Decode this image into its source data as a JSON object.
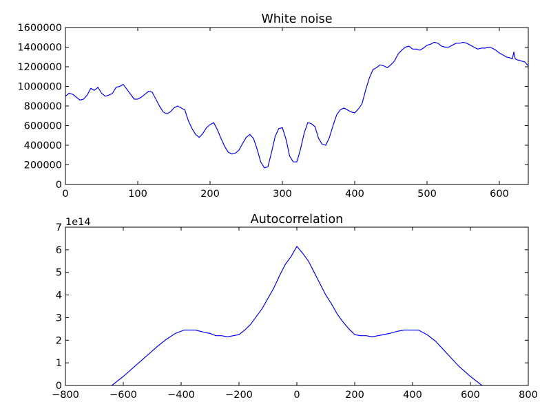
{
  "figure": {
    "background": "#ffffff"
  },
  "chart_data": [
    {
      "type": "line",
      "title": "White noise",
      "xlabel": "",
      "ylabel": "",
      "xlim": [
        0,
        640
      ],
      "ylim": [
        0,
        1600000
      ],
      "grid": false,
      "xticks": [
        0,
        100,
        200,
        300,
        400,
        500,
        600
      ],
      "yticks": [
        0,
        200000,
        400000,
        600000,
        800000,
        1000000,
        1200000,
        1400000,
        1600000
      ],
      "xtick_labels": [
        "0",
        "100",
        "200",
        "300",
        "400",
        "500",
        "600"
      ],
      "ytick_labels": [
        "0",
        "200000",
        "400000",
        "600000",
        "800000",
        "1000000",
        "1200000",
        "1400000",
        "1600000"
      ],
      "series": [
        {
          "color": "#0000ff",
          "x": [
            0,
            5,
            10,
            15,
            20,
            25,
            30,
            35,
            40,
            45,
            50,
            55,
            60,
            65,
            70,
            75,
            80,
            85,
            90,
            95,
            100,
            105,
            110,
            115,
            120,
            125,
            130,
            135,
            140,
            145,
            150,
            155,
            160,
            165,
            170,
            175,
            180,
            185,
            190,
            195,
            200,
            205,
            210,
            215,
            220,
            225,
            230,
            235,
            240,
            245,
            250,
            255,
            260,
            265,
            270,
            275,
            280,
            285,
            290,
            295,
            300,
            305,
            310,
            315,
            320,
            325,
            330,
            335,
            340,
            345,
            350,
            355,
            360,
            365,
            370,
            375,
            380,
            385,
            390,
            395,
            400,
            405,
            410,
            415,
            420,
            425,
            430,
            435,
            440,
            445,
            450,
            455,
            460,
            465,
            470,
            475,
            480,
            485,
            490,
            495,
            500,
            505,
            510,
            515,
            520,
            525,
            530,
            535,
            540,
            545,
            550,
            555,
            560,
            565,
            570,
            575,
            580,
            585,
            590,
            595,
            600,
            605,
            610,
            615,
            618,
            620,
            622,
            625,
            630,
            635,
            640
          ],
          "y": [
            900000,
            930000,
            920000,
            890000,
            860000,
            870000,
            910000,
            980000,
            960000,
            990000,
            930000,
            900000,
            910000,
            930000,
            990000,
            1000000,
            1020000,
            970000,
            920000,
            870000,
            870000,
            890000,
            920000,
            950000,
            940000,
            870000,
            800000,
            740000,
            720000,
            740000,
            780000,
            800000,
            780000,
            760000,
            650000,
            570000,
            510000,
            480000,
            520000,
            580000,
            610000,
            630000,
            560000,
            470000,
            390000,
            330000,
            310000,
            320000,
            350000,
            420000,
            480000,
            510000,
            470000,
            360000,
            230000,
            170000,
            180000,
            330000,
            490000,
            570000,
            580000,
            460000,
            290000,
            230000,
            230000,
            360000,
            520000,
            630000,
            620000,
            590000,
            470000,
            410000,
            400000,
            480000,
            600000,
            710000,
            760000,
            780000,
            760000,
            740000,
            730000,
            770000,
            820000,
            960000,
            1080000,
            1170000,
            1190000,
            1220000,
            1210000,
            1190000,
            1220000,
            1260000,
            1330000,
            1370000,
            1400000,
            1410000,
            1380000,
            1380000,
            1370000,
            1390000,
            1420000,
            1430000,
            1450000,
            1440000,
            1410000,
            1400000,
            1400000,
            1420000,
            1440000,
            1440000,
            1450000,
            1440000,
            1420000,
            1400000,
            1380000,
            1390000,
            1390000,
            1400000,
            1390000,
            1370000,
            1340000,
            1320000,
            1300000,
            1290000,
            1280000,
            1350000,
            1280000,
            1270000,
            1260000,
            1250000,
            1210000
          ]
        }
      ]
    },
    {
      "type": "line",
      "title": "Autocorrelation",
      "xlabel": "",
      "ylabel": "",
      "xlim": [
        -800,
        800
      ],
      "ylim": [
        0,
        7
      ],
      "y_scale_label": "1e14",
      "grid": false,
      "xticks": [
        -800,
        -600,
        -400,
        -200,
        0,
        200,
        400,
        600,
        800
      ],
      "yticks": [
        0,
        1,
        2,
        3,
        4,
        5,
        6,
        7
      ],
      "xtick_labels": [
        "−800",
        "−600",
        "−400",
        "−200",
        "0",
        "200",
        "400",
        "600",
        "800"
      ],
      "ytick_labels": [
        "0",
        "1",
        "2",
        "3",
        "4",
        "5",
        "6",
        "7"
      ],
      "series": [
        {
          "color": "#0000ff",
          "x": [
            -640,
            -600,
            -560,
            -520,
            -480,
            -450,
            -420,
            -390,
            -370,
            -350,
            -320,
            -300,
            -280,
            -260,
            -240,
            -220,
            -200,
            -180,
            -160,
            -140,
            -120,
            -100,
            -80,
            -60,
            -40,
            -20,
            0,
            20,
            40,
            60,
            80,
            100,
            120,
            140,
            160,
            180,
            200,
            220,
            240,
            260,
            280,
            300,
            320,
            350,
            370,
            390,
            420,
            450,
            480,
            520,
            560,
            600,
            640
          ],
          "y": [
            0,
            0.4,
            0.85,
            1.3,
            1.75,
            2.05,
            2.3,
            2.45,
            2.45,
            2.45,
            2.35,
            2.3,
            2.2,
            2.2,
            2.15,
            2.2,
            2.25,
            2.45,
            2.7,
            3.05,
            3.4,
            3.85,
            4.3,
            4.85,
            5.35,
            5.7,
            6.15,
            5.85,
            5.5,
            5.0,
            4.5,
            4.0,
            3.6,
            3.15,
            2.8,
            2.5,
            2.25,
            2.2,
            2.2,
            2.15,
            2.2,
            2.25,
            2.3,
            2.4,
            2.45,
            2.45,
            2.45,
            2.25,
            1.95,
            1.4,
            0.85,
            0.4,
            0
          ]
        }
      ]
    }
  ]
}
